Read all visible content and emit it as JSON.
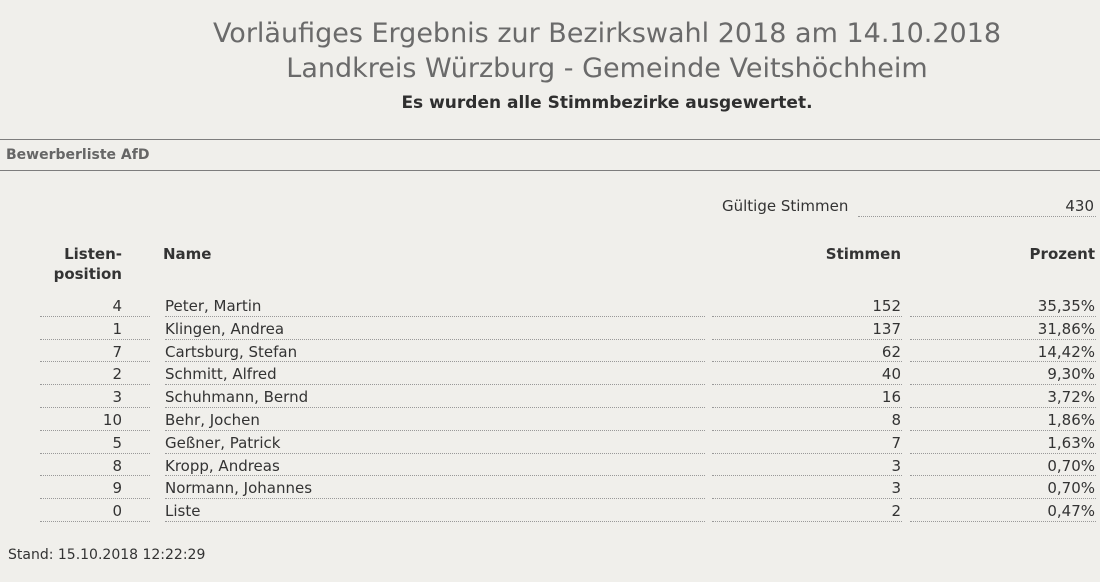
{
  "header": {
    "title_line1": "Vorläufiges Ergebnis zur Bezirkswahl 2018 am 14.10.2018",
    "title_line2": "Landkreis Würzburg - Gemeinde Veitshöchheim",
    "subtitle": "Es wurden alle Stimmbezirke ausgewertet."
  },
  "list_title": "Bewerberliste AfD",
  "valid_votes": {
    "label": "Gültige Stimmen",
    "value": "430"
  },
  "table": {
    "headers": {
      "position_line1": "Listen-",
      "position_line2": "position",
      "name": "Name",
      "votes": "Stimmen",
      "percent": "Prozent"
    },
    "rows": [
      {
        "position": "4",
        "name": "Peter, Martin",
        "votes": "152",
        "percent": "35,35%"
      },
      {
        "position": "1",
        "name": "Klingen, Andrea",
        "votes": "137",
        "percent": "31,86%"
      },
      {
        "position": "7",
        "name": "Cartsburg, Stefan",
        "votes": "62",
        "percent": "14,42%"
      },
      {
        "position": "2",
        "name": "Schmitt, Alfred",
        "votes": "40",
        "percent": "9,30%"
      },
      {
        "position": "3",
        "name": "Schuhmann, Bernd",
        "votes": "16",
        "percent": "3,72%"
      },
      {
        "position": "10",
        "name": "Behr, Jochen",
        "votes": "8",
        "percent": "1,86%"
      },
      {
        "position": "5",
        "name": "Geßner, Patrick",
        "votes": "7",
        "percent": "1,63%"
      },
      {
        "position": "8",
        "name": "Kropp, Andreas",
        "votes": "3",
        "percent": "0,70%"
      },
      {
        "position": "9",
        "name": "Normann, Johannes",
        "votes": "3",
        "percent": "0,70%"
      },
      {
        "position": "0",
        "name": "Liste",
        "votes": "2",
        "percent": "0,47%"
      }
    ]
  },
  "footer": {
    "stand": "Stand: 15.10.2018 12:22:29"
  }
}
